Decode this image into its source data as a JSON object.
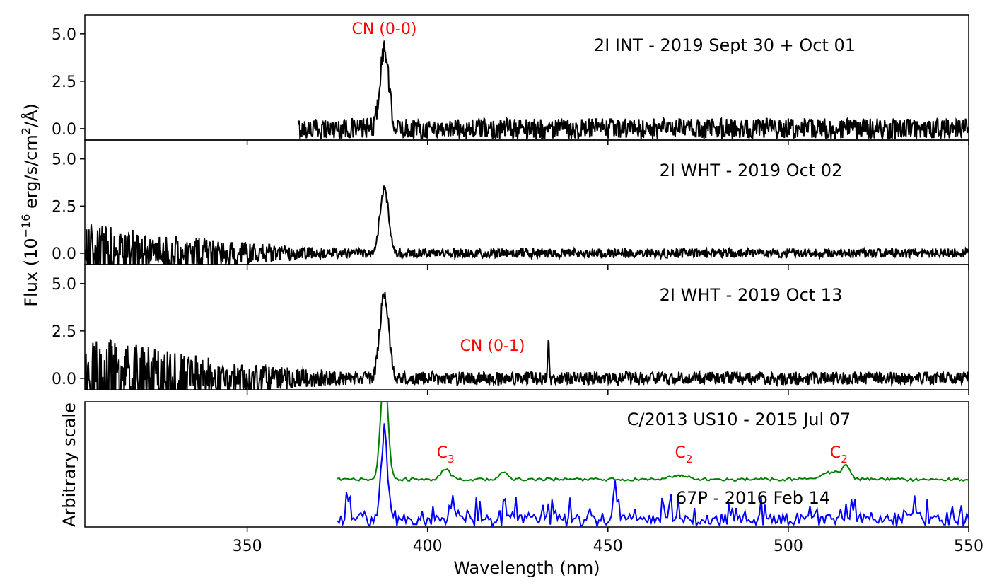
{
  "chart_data": [
    {
      "type": "line",
      "panel": "top",
      "title": "2I INT - 2019 Sept 30 + Oct 01",
      "ylabel_lines": [
        "Flux (10",
        "−16",
        " erg/s/cm",
        "2",
        "/Å)"
      ],
      "ylim": [
        -0.6,
        6.0
      ],
      "yticks": [
        "0.0",
        "2.5",
        "5.0"
      ],
      "xlim": [
        305,
        550
      ],
      "x_start": 364,
      "noise_level": 0.55,
      "peaks": [
        {
          "x": 388,
          "y": 4.2,
          "width": 1.2
        }
      ],
      "annotations": [
        {
          "text": "CN (0-0)",
          "x": 388,
          "y": 5.3,
          "color": "#ff0000"
        }
      ],
      "color": "#000000"
    },
    {
      "type": "line",
      "panel": "middle",
      "title": "2I WHT - 2019 Oct 02",
      "ylim": [
        -0.6,
        6.0
      ],
      "yticks": [
        "0.0",
        "2.5",
        "5.0"
      ],
      "xlim": [
        305,
        550
      ],
      "x_start": 305,
      "noise_level": 0.25,
      "noise_blue_boost": 5.5,
      "peaks": [
        {
          "x": 388,
          "y": 3.4,
          "width": 1.2
        }
      ],
      "annotations": [],
      "color": "#000000"
    },
    {
      "type": "line",
      "panel": "lower",
      "title": "2I WHT - 2019 Oct 13",
      "ylim": [
        -0.6,
        6.0
      ],
      "yticks": [
        "0.0",
        "2.5",
        "5.0"
      ],
      "xlim": [
        305,
        550
      ],
      "x_start": 305,
      "noise_level": 0.35,
      "noise_blue_boost": 5.8,
      "peaks": [
        {
          "x": 388,
          "y": 4.5,
          "width": 1.2
        },
        {
          "x": 433.5,
          "y": 2.0,
          "width": 0.2
        }
      ],
      "annotations": [
        {
          "text": "CN (0-1)",
          "x": 418,
          "y": 1.75,
          "color": "#ff0000"
        }
      ],
      "color": "#000000"
    },
    {
      "type": "line",
      "panel": "bottom",
      "ylabel": "Arbitrary scale",
      "xlabel": "Wavelength (nm)",
      "xlim": [
        305,
        550
      ],
      "xticks": [
        350,
        400,
        450,
        500,
        550
      ],
      "series": [
        {
          "name": "C/2013 US10 - 2015 Jul 07",
          "color": "#008000",
          "x_start": 375,
          "baseline": 0.38,
          "noise_level": 0.012,
          "peaks": [
            {
              "x": 388,
              "y": 1.25,
              "width": 1.0
            },
            {
              "x": 405,
              "y": 0.46,
              "width": 1.2
            },
            {
              "x": 421,
              "y": 0.44,
              "width": 1.0
            },
            {
              "x": 470,
              "y": 0.41,
              "width": 2.5
            },
            {
              "x": 512,
              "y": 0.44,
              "width": 3.0
            },
            {
              "x": 516,
              "y": 0.47,
              "width": 1.0
            }
          ]
        },
        {
          "name": "67P - 2016 Feb 14",
          "color": "#0000ff",
          "x_start": 375,
          "baseline": 0.05,
          "noise_level": 0.05,
          "peaks": [
            {
              "x": 388,
              "y": 0.74,
              "width": 0.9
            },
            {
              "x": 378,
              "y": 0.25,
              "width": 0.4
            },
            {
              "x": 407,
              "y": 0.25,
              "width": 0.4
            },
            {
              "x": 452,
              "y": 0.28,
              "width": 0.4
            },
            {
              "x": 535,
              "y": 0.2,
              "width": 0.5
            }
          ]
        }
      ],
      "annotations": [
        {
          "text": "C",
          "sub": "3",
          "x": 405,
          "y": 0.6,
          "color": "#ff0000"
        },
        {
          "text": "C",
          "sub": "2",
          "x": 471,
          "y": 0.6,
          "color": "#ff0000"
        },
        {
          "text": "C",
          "sub": "2",
          "x": 514,
          "y": 0.6,
          "color": "#ff0000"
        }
      ],
      "ylim": [
        0.0,
        1.0
      ]
    }
  ]
}
